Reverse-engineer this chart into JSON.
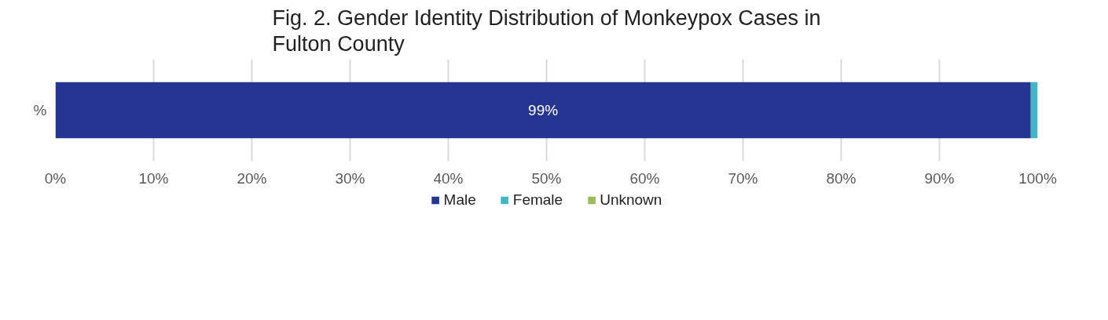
{
  "chart_data": {
    "type": "bar",
    "orientation": "horizontal",
    "stacked": true,
    "title": "Fig. 2. Gender Identity Distribution of Monkeypox Cases in Fulton County",
    "categories": [
      "%"
    ],
    "series": [
      {
        "name": "Male",
        "color": "#263592",
        "values": [
          99.3
        ],
        "value_labels": [
          "99%"
        ]
      },
      {
        "name": "Female",
        "color": "#3fb7c4",
        "values": [
          0.7
        ]
      },
      {
        "name": "Unknown",
        "color": "#9bbb59",
        "values": [
          0
        ]
      }
    ],
    "xlim": [
      0,
      100
    ],
    "xticks": [
      {
        "value": 0,
        "label": "0%"
      },
      {
        "value": 10,
        "label": "10%"
      },
      {
        "value": 20,
        "label": "20%"
      },
      {
        "value": 30,
        "label": "30%"
      },
      {
        "value": 40,
        "label": "40%"
      },
      {
        "value": 50,
        "label": "50%"
      },
      {
        "value": 60,
        "label": "60%"
      },
      {
        "value": 70,
        "label": "70%"
      },
      {
        "value": 80,
        "label": "80%"
      },
      {
        "value": 90,
        "label": "90%"
      },
      {
        "value": 100,
        "label": "100%"
      }
    ],
    "grid": "x",
    "legend": "bottom"
  }
}
